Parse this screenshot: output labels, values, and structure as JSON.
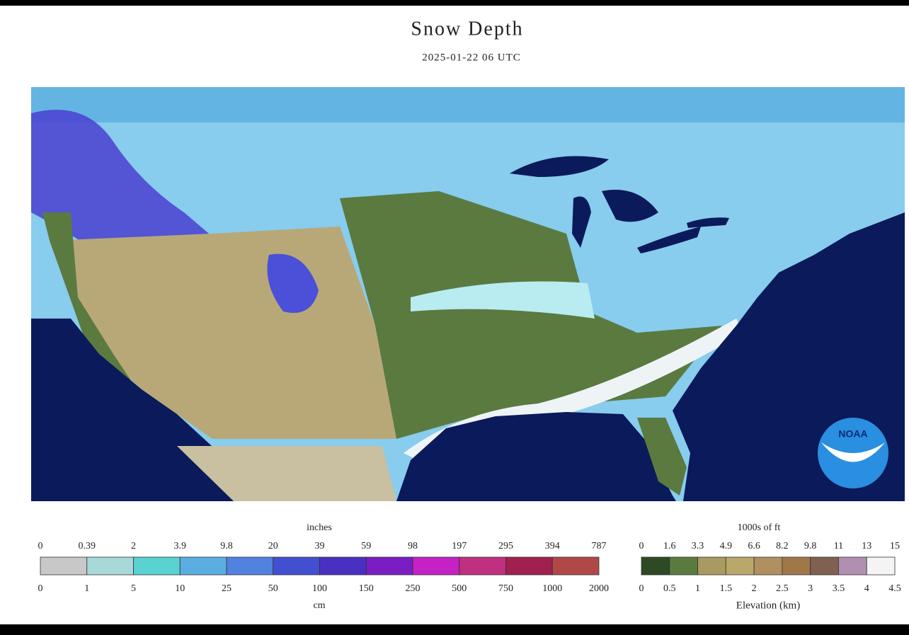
{
  "title": "Snow Depth",
  "subtitle": "2025-01-22 06 UTC",
  "logo": "NOAA",
  "snow_legend": {
    "top_unit": "inches",
    "top_labels": [
      "0",
      "0.39",
      "2",
      "3.9",
      "9.8",
      "20",
      "39",
      "59",
      "98",
      "197",
      "295",
      "394",
      "787"
    ],
    "bottom_labels": [
      "0",
      "1",
      "5",
      "10",
      "25",
      "50",
      "100",
      "150",
      "250",
      "500",
      "750",
      "1000",
      "2000"
    ],
    "bottom_unit": "cm",
    "colors": [
      "#c8c8c8",
      "#a8d8d8",
      "#5ad2d2",
      "#5aaee0",
      "#5282e0",
      "#4250d0",
      "#4a30c0",
      "#7a1ec4",
      "#c422c4",
      "#c03080",
      "#a02050",
      "#b04848"
    ]
  },
  "elevation_legend": {
    "top_unit": "1000s of ft",
    "top_labels": [
      "0",
      "1.6",
      "3.3",
      "4.9",
      "6.6",
      "8.2",
      "9.8",
      "11",
      "13",
      "15"
    ],
    "bottom_labels": [
      "0",
      "0.5",
      "1",
      "1.5",
      "2",
      "2.5",
      "3",
      "3.5",
      "4",
      "4.5"
    ],
    "bottom_unit": "Elevation (km)",
    "colors": [
      "#2e4a24",
      "#5a7a40",
      "#a89a60",
      "#b8a86a",
      "#b09060",
      "#a07848",
      "#806050",
      "#b090b0",
      "#f4f4f4"
    ]
  }
}
